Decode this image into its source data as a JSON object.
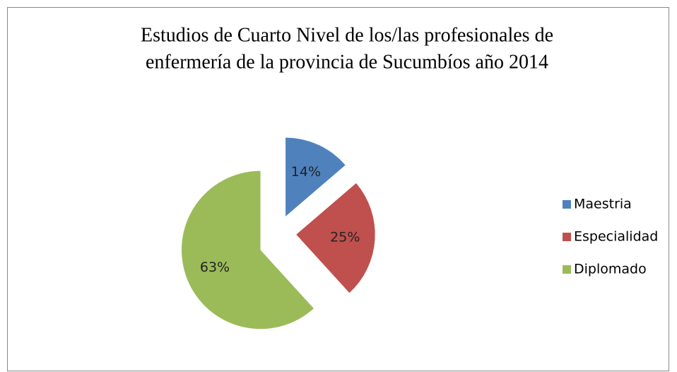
{
  "chart_data": {
    "type": "pie",
    "title": [
      "Estudios de Cuarto Nivel de los/las profesionales de",
      "enfermería de la provincia de Sucumbíos año 2014"
    ],
    "categories": [
      "Maestria",
      "Especialidad",
      "Diplomado"
    ],
    "values": [
      14,
      25,
      63
    ],
    "value_labels": [
      "14%",
      "25%",
      "63%"
    ],
    "colors": [
      "#4f81bd",
      "#c0504d",
      "#9bbb59"
    ],
    "legend": "right"
  }
}
